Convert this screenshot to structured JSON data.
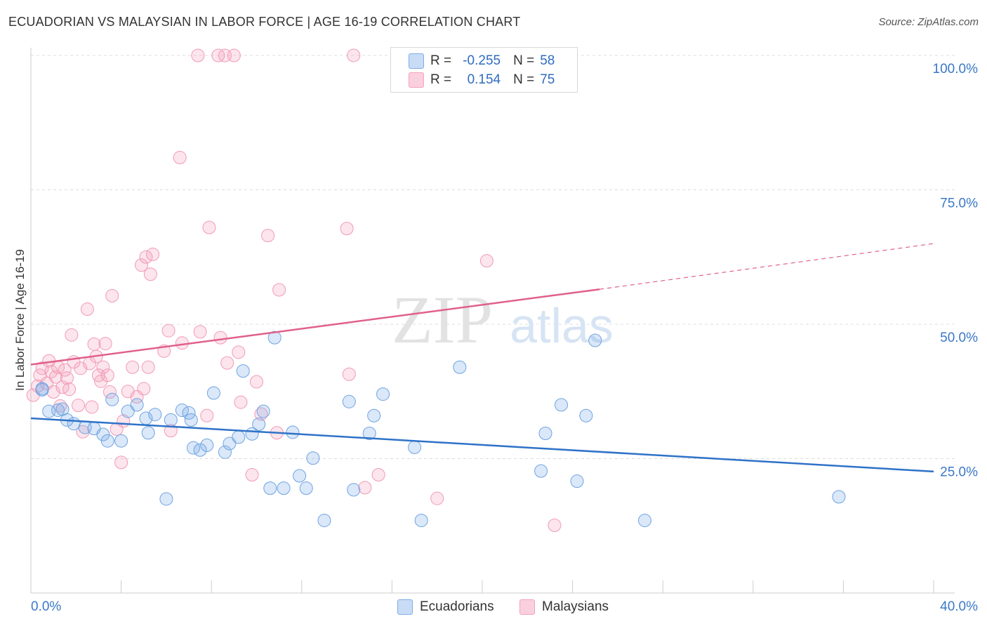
{
  "title": "ECUADORIAN VS MALAYSIAN IN LABOR FORCE | AGE 16-19 CORRELATION CHART",
  "source": "Source: ZipAtlas.com",
  "watermark": {
    "zip": "ZIP",
    "atlas": "atlas"
  },
  "legend": {
    "rows": [
      {
        "r_label": "R =",
        "r_value": "-0.255",
        "n_label": "N =",
        "n_value": "58"
      },
      {
        "r_label": "R =",
        "r_value": "0.154",
        "n_label": "N =",
        "n_value": "75"
      }
    ]
  },
  "colors": {
    "ecuadorians": "#7aaee8",
    "malaysians": "#f4a0bc",
    "ecuadorians_line": "#2f72c8",
    "malaysians_line": "#e0608a"
  },
  "chart_data": {
    "type": "scatter",
    "title": "ECUADORIAN VS MALAYSIAN IN LABOR FORCE | AGE 16-19 CORRELATION CHART",
    "xlabel": "",
    "ylabel": "In Labor Force | Age 16-19",
    "xlim": [
      0,
      40
    ],
    "ylim": [
      0,
      105
    ],
    "x_tick_labels": [
      "0.0%",
      "40.0%"
    ],
    "y_ticks": [
      25,
      50,
      75,
      100
    ],
    "y_tick_labels": [
      "25.0%",
      "50.0%",
      "75.0%",
      "100.0%"
    ],
    "grid": true,
    "legend_position": "top-center",
    "series": [
      {
        "name": "Ecuadorians",
        "r": -0.255,
        "n": 58,
        "trend": {
          "x0": 0,
          "y0": 32.5,
          "x1": 40,
          "y1": 22.6
        },
        "points": [
          [
            0.5,
            38.0
          ],
          [
            0.5,
            37.8
          ],
          [
            0.8,
            33.8
          ],
          [
            1.2,
            34.0
          ],
          [
            1.4,
            34.2
          ],
          [
            1.6,
            32.2
          ],
          [
            1.9,
            31.5
          ],
          [
            2.4,
            30.8
          ],
          [
            2.8,
            30.6
          ],
          [
            3.2,
            29.5
          ],
          [
            3.4,
            28.3
          ],
          [
            3.6,
            36.0
          ],
          [
            4.0,
            28.3
          ],
          [
            4.3,
            33.8
          ],
          [
            4.7,
            35.0
          ],
          [
            5.1,
            32.5
          ],
          [
            5.2,
            29.8
          ],
          [
            5.5,
            33.2
          ],
          [
            6.0,
            17.5
          ],
          [
            6.2,
            32.2
          ],
          [
            6.7,
            34.0
          ],
          [
            7.0,
            33.5
          ],
          [
            7.1,
            32.2
          ],
          [
            7.2,
            27.0
          ],
          [
            7.5,
            26.6
          ],
          [
            7.8,
            27.5
          ],
          [
            8.1,
            37.2
          ],
          [
            8.6,
            26.2
          ],
          [
            8.8,
            27.8
          ],
          [
            9.2,
            29.0
          ],
          [
            9.4,
            41.3
          ],
          [
            9.8,
            29.6
          ],
          [
            10.1,
            31.4
          ],
          [
            10.3,
            33.8
          ],
          [
            10.6,
            19.5
          ],
          [
            10.8,
            47.5
          ],
          [
            11.2,
            19.5
          ],
          [
            11.6,
            29.9
          ],
          [
            11.9,
            21.8
          ],
          [
            12.2,
            19.5
          ],
          [
            12.5,
            25.1
          ],
          [
            13.0,
            13.5
          ],
          [
            14.1,
            35.6
          ],
          [
            14.3,
            19.2
          ],
          [
            15.0,
            29.7
          ],
          [
            15.2,
            33.0
          ],
          [
            15.6,
            37.0
          ],
          [
            17.0,
            27.1
          ],
          [
            17.3,
            13.5
          ],
          [
            19.0,
            42.0
          ],
          [
            22.6,
            22.7
          ],
          [
            22.8,
            29.7
          ],
          [
            23.5,
            35.0
          ],
          [
            24.2,
            20.8
          ],
          [
            24.6,
            33.0
          ],
          [
            25.0,
            47.0
          ],
          [
            27.2,
            13.5
          ],
          [
            35.8,
            17.9
          ]
        ]
      },
      {
        "name": "Malaysians",
        "r": 0.154,
        "n": 75,
        "trend": {
          "x0": 0,
          "y0": 42.5,
          "x1": 25.2,
          "y1": 56.5,
          "dashed_to": {
            "x": 40,
            "y": 65.0
          }
        },
        "points": [
          [
            0.1,
            36.8
          ],
          [
            0.3,
            38.5
          ],
          [
            0.4,
            40.5
          ],
          [
            0.5,
            41.8
          ],
          [
            0.7,
            39.0
          ],
          [
            0.8,
            43.2
          ],
          [
            0.9,
            41.2
          ],
          [
            1.0,
            37.4
          ],
          [
            1.1,
            40.2
          ],
          [
            1.2,
            42.0
          ],
          [
            1.4,
            38.3
          ],
          [
            1.5,
            41.5
          ],
          [
            1.6,
            40.0
          ],
          [
            1.7,
            37.9
          ],
          [
            1.8,
            48.0
          ],
          [
            1.9,
            43.0
          ],
          [
            2.1,
            34.9
          ],
          [
            2.2,
            41.8
          ],
          [
            2.3,
            30.0
          ],
          [
            2.5,
            52.8
          ],
          [
            2.6,
            42.7
          ],
          [
            2.8,
            46.3
          ],
          [
            2.9,
            44.0
          ],
          [
            3.0,
            40.5
          ],
          [
            3.1,
            39.4
          ],
          [
            3.2,
            42.0
          ],
          [
            3.3,
            46.4
          ],
          [
            3.4,
            40.5
          ],
          [
            3.5,
            37.4
          ],
          [
            3.6,
            55.3
          ],
          [
            3.8,
            30.5
          ],
          [
            4.0,
            24.3
          ],
          [
            4.1,
            32.0
          ],
          [
            4.3,
            37.5
          ],
          [
            4.5,
            42.0
          ],
          [
            4.7,
            36.5
          ],
          [
            4.9,
            61.0
          ],
          [
            5.0,
            38.0
          ],
          [
            5.1,
            62.5
          ],
          [
            5.2,
            42.0
          ],
          [
            5.3,
            59.3
          ],
          [
            5.4,
            63.0
          ],
          [
            5.9,
            45.0
          ],
          [
            6.1,
            48.8
          ],
          [
            6.2,
            30.2
          ],
          [
            6.6,
            81.0
          ],
          [
            6.7,
            46.5
          ],
          [
            7.4,
            100.0
          ],
          [
            7.5,
            48.6
          ],
          [
            7.8,
            33.0
          ],
          [
            7.9,
            68.0
          ],
          [
            8.3,
            100.0
          ],
          [
            8.4,
            47.5
          ],
          [
            8.6,
            100.0
          ],
          [
            8.7,
            42.8
          ],
          [
            9.0,
            100.0
          ],
          [
            9.2,
            44.8
          ],
          [
            9.3,
            35.5
          ],
          [
            9.8,
            22.0
          ],
          [
            10.0,
            39.3
          ],
          [
            10.2,
            33.3
          ],
          [
            10.5,
            66.5
          ],
          [
            10.9,
            29.8
          ],
          [
            11.0,
            56.4
          ],
          [
            14.0,
            67.8
          ],
          [
            14.1,
            40.7
          ],
          [
            14.3,
            100.0
          ],
          [
            14.8,
            19.6
          ],
          [
            15.4,
            22.0
          ],
          [
            16.5,
            100.0
          ],
          [
            18.0,
            17.6
          ],
          [
            20.2,
            61.8
          ],
          [
            23.2,
            12.6
          ],
          [
            1.3,
            34.8
          ],
          [
            2.7,
            34.6
          ]
        ]
      }
    ]
  }
}
